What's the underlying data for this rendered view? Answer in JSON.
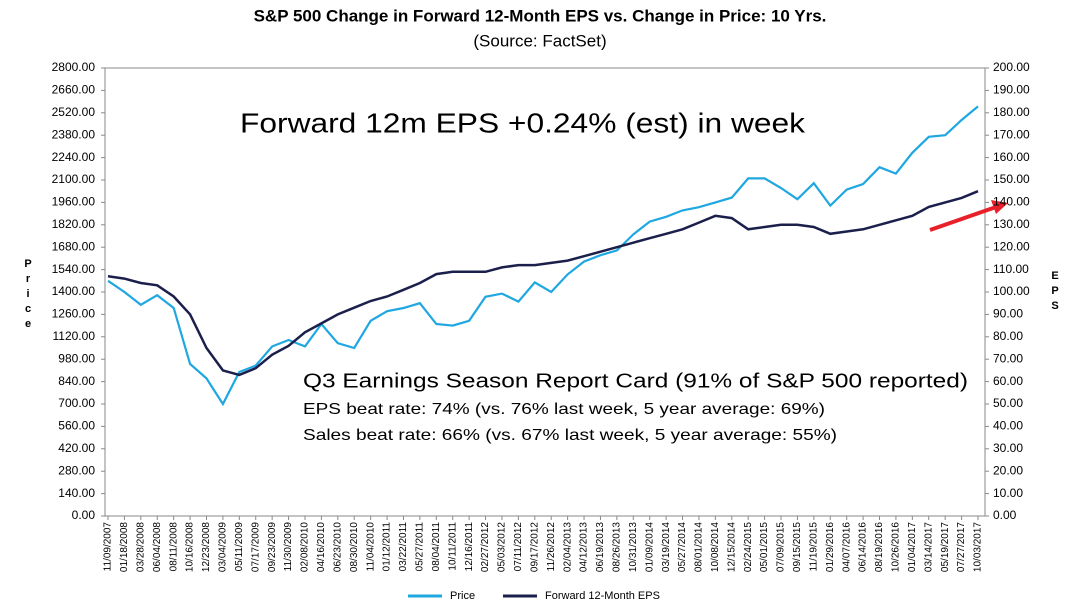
{
  "chart_data": {
    "type": "line",
    "title": "S&P 500 Change in Forward 12-Month EPS vs. Change in Price: 10 Yrs.",
    "subtitle": "(Source: FactSet)",
    "y_label": "Price",
    "y2_label": "EPS",
    "categories": [
      "11/09/2007",
      "01/18/2008",
      "03/28/2008",
      "06/04/2008",
      "08/11/2008",
      "10/16/2008",
      "12/23/2008",
      "03/04/2009",
      "05/11/2009",
      "07/17/2009",
      "09/23/2009",
      "11/30/2009",
      "02/08/2010",
      "04/16/2010",
      "06/23/2010",
      "08/30/2010",
      "11/04/2010",
      "01/12/2011",
      "03/22/2011",
      "05/27/2011",
      "08/04/2011",
      "10/11/2011",
      "12/16/2011",
      "02/27/2012",
      "05/03/2012",
      "07/11/2012",
      "09/17/2012",
      "11/26/2012",
      "02/04/2013",
      "04/12/2013",
      "06/19/2013",
      "08/26/2013",
      "10/31/2013",
      "01/09/2014",
      "03/19/2014",
      "05/27/2014",
      "08/01/2014",
      "10/08/2014",
      "12/15/2014",
      "02/24/2015",
      "05/01/2015",
      "07/09/2015",
      "09/15/2015",
      "11/19/2015",
      "01/29/2016",
      "04/07/2016",
      "06/14/2016",
      "08/19/2016",
      "10/26/2016",
      "01/04/2017",
      "03/14/2017",
      "05/19/2017",
      "07/27/2017",
      "10/03/2017"
    ],
    "series": [
      {
        "name": "Price",
        "color": "#1ea7e1",
        "values": [
          1470,
          1400,
          1320,
          1380,
          1300,
          950,
          860,
          700,
          900,
          940,
          1060,
          1100,
          1060,
          1200,
          1080,
          1050,
          1220,
          1280,
          1300,
          1330,
          1200,
          1190,
          1220,
          1370,
          1390,
          1340,
          1460,
          1400,
          1510,
          1590,
          1630,
          1660,
          1760,
          1840,
          1870,
          1910,
          1930,
          1960,
          1990,
          2110,
          2110,
          2050,
          1980,
          2080,
          1940,
          2040,
          2075,
          2180,
          2140,
          2270,
          2370,
          2380,
          2475,
          2560
        ]
      },
      {
        "name": "Forward 12-Month EPS",
        "color": "#1b1f4b",
        "axis": "y2",
        "values": [
          107,
          106,
          104,
          103,
          98,
          90,
          75,
          65,
          63,
          66,
          72,
          76,
          82,
          86,
          90,
          93,
          96,
          98,
          101,
          104,
          108,
          109,
          109,
          109,
          111,
          112,
          112,
          113,
          114,
          116,
          118,
          120,
          122,
          124,
          126,
          128,
          131,
          134,
          133,
          128,
          129,
          130,
          130,
          129,
          126,
          127,
          128,
          130,
          132,
          134,
          138,
          140,
          142,
          145
        ]
      }
    ],
    "ylim": [
      0,
      2800
    ],
    "yticks": [
      {
        "value": 0,
        "label": "0.00"
      },
      {
        "value": 140,
        "label": "140.00"
      },
      {
        "value": 280,
        "label": "280.00"
      },
      {
        "value": 420,
        "label": "420.00"
      },
      {
        "value": 560,
        "label": "560.00"
      },
      {
        "value": 700,
        "label": "700.00"
      },
      {
        "value": 840,
        "label": "840.00"
      },
      {
        "value": 980,
        "label": "980.00"
      },
      {
        "value": 1120,
        "label": "1120.00"
      },
      {
        "value": 1260,
        "label": "1260.00"
      },
      {
        "value": 1400,
        "label": "1400.00"
      },
      {
        "value": 1540,
        "label": "1540.00"
      },
      {
        "value": 1680,
        "label": "1680.00"
      },
      {
        "value": 1820,
        "label": "1820.00"
      },
      {
        "value": 1960,
        "label": "1960.00"
      },
      {
        "value": 2100,
        "label": "2100.00"
      },
      {
        "value": 2240,
        "label": "2240.00"
      },
      {
        "value": 2380,
        "label": "2380.00"
      },
      {
        "value": 2520,
        "label": "2520.00"
      },
      {
        "value": 2660,
        "label": "2660.00"
      },
      {
        "value": 2800,
        "label": "2800.00"
      }
    ],
    "y2lim": [
      0,
      200
    ],
    "y2ticks": [
      {
        "value": 0,
        "label": "0.00"
      },
      {
        "value": 10,
        "label": "10.00"
      },
      {
        "value": 20,
        "label": "20.00"
      },
      {
        "value": 30,
        "label": "30.00"
      },
      {
        "value": 40,
        "label": "40.00"
      },
      {
        "value": 50,
        "label": "50.00"
      },
      {
        "value": 60,
        "label": "60.00"
      },
      {
        "value": 70,
        "label": "70.00"
      },
      {
        "value": 80,
        "label": "80.00"
      },
      {
        "value": 90,
        "label": "90.00"
      },
      {
        "value": 100,
        "label": "100.00"
      },
      {
        "value": 110,
        "label": "110.00"
      },
      {
        "value": 120,
        "label": "120.00"
      },
      {
        "value": 130,
        "label": "130.00"
      },
      {
        "value": 140,
        "label": "140.00"
      },
      {
        "value": 150,
        "label": "150.00"
      },
      {
        "value": 160,
        "label": "160.00"
      },
      {
        "value": 170,
        "label": "170.00"
      },
      {
        "value": 180,
        "label": "180.00"
      },
      {
        "value": 190,
        "label": "190.00"
      },
      {
        "value": 200,
        "label": "200.00"
      }
    ],
    "grid": false,
    "legend": "bottom",
    "annotations": [
      {
        "text": "Forward 12m EPS +0.24% (est) in week",
        "color": "#e8202a"
      },
      {
        "text": "Q3 Earnings Season Report Card (91% of S&P 500 reported)",
        "color": "#000000"
      },
      {
        "text": "EPS beat rate: 74% (vs. 76% last week, 5 year average: 69%)",
        "color": "#000000"
      },
      {
        "text": "Sales beat rate: 66% (vs. 67% last week, 5 year average: 55%)",
        "color": "#000000"
      }
    ]
  }
}
